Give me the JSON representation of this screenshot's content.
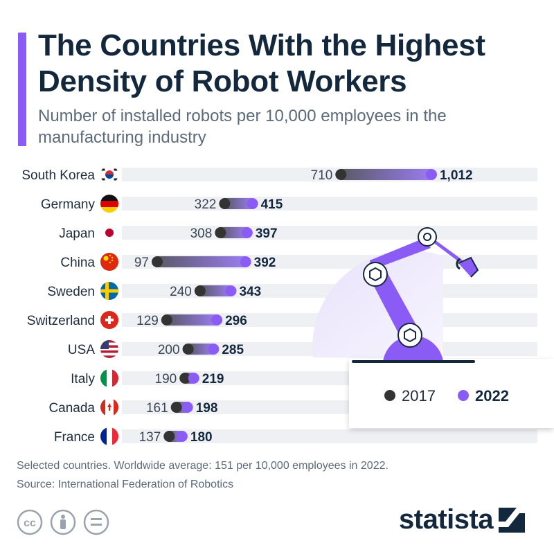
{
  "title": "The Countries With the Highest Density of Robot Workers",
  "subtitle": "Number of installed robots per 10,000 employees in the manufacturing industry",
  "colors": {
    "accent": "#8a5cf5",
    "dot_2017": "#333333",
    "dot_2022": "#8a5cf5",
    "track": "#eef0f4",
    "title": "#14283d"
  },
  "chart_data": {
    "type": "dumbbell",
    "title": "The Countries With the Highest Density of Robot Workers",
    "subtitle": "Number of installed robots per 10,000 employees in the manufacturing industry",
    "categories": [
      "South Korea",
      "Germany",
      "Japan",
      "China",
      "Sweden",
      "Switzerland",
      "USA",
      "Italy",
      "Canada",
      "France"
    ],
    "flags": [
      "flag-south-korea",
      "flag-germany",
      "flag-japan",
      "flag-china",
      "flag-sweden",
      "flag-switzerland",
      "flag-usa",
      "flag-italy",
      "flag-canada",
      "flag-france"
    ],
    "series": [
      {
        "name": "2017",
        "values": [
          710,
          322,
          308,
          97,
          240,
          129,
          200,
          190,
          161,
          137
        ],
        "labels": [
          "710",
          "322",
          "308",
          "97",
          "240",
          "129",
          "200",
          "190",
          "161",
          "137"
        ]
      },
      {
        "name": "2022",
        "values": [
          1012,
          415,
          397,
          392,
          343,
          296,
          285,
          219,
          198,
          180
        ],
        "labels": [
          "1,012",
          "415",
          "397",
          "392",
          "343",
          "296",
          "285",
          "219",
          "198",
          "180"
        ]
      }
    ],
    "legend": [
      "2017",
      "2022"
    ],
    "legend_position": "right, inside illustration card",
    "grid": false
  },
  "footnote": "Selected countries. Worldwide average: 151 per 10,000 employees in 2022.",
  "source": "Source: International Federation of Robotics",
  "license_icons": [
    "cc-icon",
    "person-icon",
    "equals-icon"
  ],
  "brand": "statista"
}
